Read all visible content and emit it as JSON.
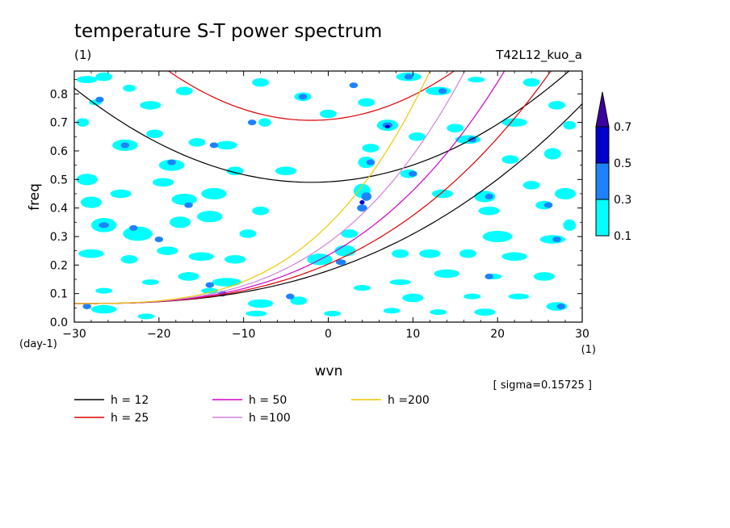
{
  "chart_data": {
    "type": "heatmap",
    "title": "temperature S-T power spectrum",
    "subtitle_left": "(1)",
    "subtitle_right": "T42L12_kuo_a",
    "xlabel": "wvn",
    "ylabel": "freq",
    "x_unit": "(1)",
    "y_unit": "(day-1)",
    "xlim": [
      -30,
      30
    ],
    "ylim": [
      0,
      0.88
    ],
    "x_ticks": [
      -30,
      -20,
      -10,
      0,
      10,
      20,
      30
    ],
    "y_ticks": [
      0.0,
      0.1,
      0.2,
      0.3,
      0.4,
      0.5,
      0.6,
      0.7,
      0.8
    ],
    "sigma_label": "[ sigma=0.15725 ]",
    "colorbar": {
      "levels": [
        0.1,
        0.3,
        0.5,
        0.7
      ],
      "colors": [
        "#00ffff",
        "#1e82ff",
        "#0000cd",
        "#3c00a0"
      ]
    },
    "dispersion_curves": [
      {
        "name": "h = 12",
        "h": 12,
        "color": "#000000"
      },
      {
        "name": "h = 25",
        "h": 25,
        "color": "#dc0000"
      },
      {
        "name": "h = 50",
        "h": 50,
        "color": "#d200c8"
      },
      {
        "name": "h =100",
        "h": 100,
        "color": "#d282dc"
      },
      {
        "name": "h =200",
        "h": 200,
        "color": "#f0c800"
      }
    ],
    "power_patches": [
      {
        "x": -28.5,
        "y": 0.85,
        "w": 2.5,
        "h": 0.025,
        "level": 1
      },
      {
        "x": -26.5,
        "y": 0.86,
        "w": 2.0,
        "h": 0.03,
        "level": 1
      },
      {
        "x": -23.5,
        "y": 0.82,
        "w": 1.5,
        "h": 0.025,
        "level": 1
      },
      {
        "x": -27.5,
        "y": 0.77,
        "w": 1.5,
        "h": 0.02,
        "level": 1
      },
      {
        "x": -21.0,
        "y": 0.76,
        "w": 2.5,
        "h": 0.03,
        "level": 1
      },
      {
        "x": -17.0,
        "y": 0.81,
        "w": 2.0,
        "h": 0.03,
        "level": 1
      },
      {
        "x": -8.0,
        "y": 0.84,
        "w": 2.0,
        "h": 0.03,
        "level": 1
      },
      {
        "x": -3.0,
        "y": 0.79,
        "w": 2.0,
        "h": 0.03,
        "level": 1
      },
      {
        "x": 0.0,
        "y": 0.73,
        "w": 2.0,
        "h": 0.03,
        "level": 1
      },
      {
        "x": 4.5,
        "y": 0.77,
        "w": 2.0,
        "h": 0.03,
        "level": 1
      },
      {
        "x": 9.5,
        "y": 0.86,
        "w": 3.0,
        "h": 0.03,
        "level": 1
      },
      {
        "x": 13.0,
        "y": 0.81,
        "w": 3.0,
        "h": 0.03,
        "level": 1
      },
      {
        "x": 17.5,
        "y": 0.85,
        "w": 2.0,
        "h": 0.02,
        "level": 1
      },
      {
        "x": 24.0,
        "y": 0.84,
        "w": 2.0,
        "h": 0.03,
        "level": 1
      },
      {
        "x": 27.0,
        "y": 0.76,
        "w": 2.0,
        "h": 0.03,
        "level": 1
      },
      {
        "x": 28.5,
        "y": 0.69,
        "w": 1.5,
        "h": 0.03,
        "level": 1
      },
      {
        "x": 22.0,
        "y": 0.7,
        "w": 3.0,
        "h": 0.03,
        "level": 1
      },
      {
        "x": 16.5,
        "y": 0.64,
        "w": 3.0,
        "h": 0.03,
        "level": 1
      },
      {
        "x": 10.5,
        "y": 0.65,
        "w": 2.0,
        "h": 0.03,
        "level": 1
      },
      {
        "x": -29.0,
        "y": 0.7,
        "w": 1.5,
        "h": 0.03,
        "level": 1
      },
      {
        "x": -24.0,
        "y": 0.62,
        "w": 3.0,
        "h": 0.04,
        "level": 1
      },
      {
        "x": -20.5,
        "y": 0.66,
        "w": 2.0,
        "h": 0.03,
        "level": 1
      },
      {
        "x": -18.5,
        "y": 0.55,
        "w": 3.0,
        "h": 0.04,
        "level": 1
      },
      {
        "x": -15.5,
        "y": 0.63,
        "w": 2.0,
        "h": 0.03,
        "level": 1
      },
      {
        "x": -12.0,
        "y": 0.62,
        "w": 2.5,
        "h": 0.03,
        "level": 1
      },
      {
        "x": -28.5,
        "y": 0.5,
        "w": 2.5,
        "h": 0.04,
        "level": 1
      },
      {
        "x": -24.5,
        "y": 0.45,
        "w": 2.5,
        "h": 0.03,
        "level": 1
      },
      {
        "x": -19.5,
        "y": 0.49,
        "w": 2.5,
        "h": 0.03,
        "level": 1
      },
      {
        "x": -17.0,
        "y": 0.43,
        "w": 3.0,
        "h": 0.04,
        "level": 1
      },
      {
        "x": -13.5,
        "y": 0.45,
        "w": 3.0,
        "h": 0.04,
        "level": 1
      },
      {
        "x": -5.0,
        "y": 0.53,
        "w": 2.5,
        "h": 0.03,
        "level": 1
      },
      {
        "x": -8.0,
        "y": 0.39,
        "w": 2.0,
        "h": 0.03,
        "level": 1
      },
      {
        "x": -28.0,
        "y": 0.42,
        "w": 2.5,
        "h": 0.04,
        "level": 1
      },
      {
        "x": -26.5,
        "y": 0.34,
        "w": 3.0,
        "h": 0.05,
        "level": 1
      },
      {
        "x": -22.5,
        "y": 0.31,
        "w": 3.5,
        "h": 0.05,
        "level": 1
      },
      {
        "x": -17.5,
        "y": 0.35,
        "w": 2.5,
        "h": 0.04,
        "level": 1
      },
      {
        "x": -14.0,
        "y": 0.37,
        "w": 3.0,
        "h": 0.04,
        "level": 1
      },
      {
        "x": -9.5,
        "y": 0.31,
        "w": 2.0,
        "h": 0.03,
        "level": 1
      },
      {
        "x": -28.0,
        "y": 0.24,
        "w": 3.0,
        "h": 0.03,
        "level": 1
      },
      {
        "x": -23.5,
        "y": 0.22,
        "w": 2.0,
        "h": 0.03,
        "level": 1
      },
      {
        "x": -19.0,
        "y": 0.25,
        "w": 2.5,
        "h": 0.03,
        "level": 1
      },
      {
        "x": -15.0,
        "y": 0.23,
        "w": 3.0,
        "h": 0.03,
        "level": 1
      },
      {
        "x": -11.0,
        "y": 0.22,
        "w": 2.5,
        "h": 0.03,
        "level": 1
      },
      {
        "x": -16.5,
        "y": 0.16,
        "w": 2.5,
        "h": 0.03,
        "level": 1
      },
      {
        "x": -21.0,
        "y": 0.14,
        "w": 2.0,
        "h": 0.02,
        "level": 1
      },
      {
        "x": -26.5,
        "y": 0.11,
        "w": 2.0,
        "h": 0.02,
        "level": 1
      },
      {
        "x": -12.0,
        "y": 0.14,
        "w": 3.5,
        "h": 0.03,
        "level": 1
      },
      {
        "x": -14.0,
        "y": 0.11,
        "w": 2.0,
        "h": 0.02,
        "level": 1
      },
      {
        "x": -8.0,
        "y": 0.065,
        "w": 3.0,
        "h": 0.03,
        "level": 1
      },
      {
        "x": -3.5,
        "y": 0.075,
        "w": 2.0,
        "h": 0.03,
        "level": 1
      },
      {
        "x": -8.5,
        "y": 0.03,
        "w": 2.5,
        "h": 0.02,
        "level": 1
      },
      {
        "x": -26.5,
        "y": 0.045,
        "w": 3.0,
        "h": 0.03,
        "level": 1
      },
      {
        "x": -21.5,
        "y": 0.02,
        "w": 2.0,
        "h": 0.02,
        "level": 1
      },
      {
        "x": 0.5,
        "y": 0.03,
        "w": 2.0,
        "h": 0.02,
        "level": 1
      },
      {
        "x": -1.0,
        "y": 0.22,
        "w": 3.0,
        "h": 0.04,
        "level": 1
      },
      {
        "x": 2.0,
        "y": 0.25,
        "w": 2.5,
        "h": 0.04,
        "level": 1
      },
      {
        "x": 2.5,
        "y": 0.31,
        "w": 2.0,
        "h": 0.03,
        "level": 1
      },
      {
        "x": 4.0,
        "y": 0.46,
        "w": 2.0,
        "h": 0.05,
        "level": 1
      },
      {
        "x": 4.5,
        "y": 0.56,
        "w": 2.0,
        "h": 0.04,
        "level": 1
      },
      {
        "x": 7.0,
        "y": 0.69,
        "w": 2.5,
        "h": 0.04,
        "level": 1
      },
      {
        "x": 5.0,
        "y": 0.61,
        "w": 2.0,
        "h": 0.03,
        "level": 1
      },
      {
        "x": 9.5,
        "y": 0.52,
        "w": 2.0,
        "h": 0.03,
        "level": 1
      },
      {
        "x": 13.5,
        "y": 0.45,
        "w": 2.5,
        "h": 0.03,
        "level": 1
      },
      {
        "x": 18.5,
        "y": 0.44,
        "w": 2.5,
        "h": 0.04,
        "level": 1
      },
      {
        "x": 24.0,
        "y": 0.48,
        "w": 2.0,
        "h": 0.03,
        "level": 1
      },
      {
        "x": 28.0,
        "y": 0.45,
        "w": 2.5,
        "h": 0.04,
        "level": 1
      },
      {
        "x": 19.0,
        "y": 0.39,
        "w": 2.5,
        "h": 0.03,
        "level": 1
      },
      {
        "x": 25.5,
        "y": 0.41,
        "w": 2.0,
        "h": 0.03,
        "level": 1
      },
      {
        "x": 28.5,
        "y": 0.34,
        "w": 1.5,
        "h": 0.04,
        "level": 1
      },
      {
        "x": 20.0,
        "y": 0.3,
        "w": 3.5,
        "h": 0.04,
        "level": 1
      },
      {
        "x": 26.5,
        "y": 0.29,
        "w": 3.0,
        "h": 0.03,
        "level": 1
      },
      {
        "x": 22.0,
        "y": 0.23,
        "w": 3.0,
        "h": 0.03,
        "level": 1
      },
      {
        "x": 16.5,
        "y": 0.24,
        "w": 2.0,
        "h": 0.03,
        "level": 1
      },
      {
        "x": 12.0,
        "y": 0.24,
        "w": 2.5,
        "h": 0.03,
        "level": 1
      },
      {
        "x": 8.5,
        "y": 0.24,
        "w": 2.0,
        "h": 0.03,
        "level": 1
      },
      {
        "x": 14.0,
        "y": 0.17,
        "w": 3.0,
        "h": 0.03,
        "level": 1
      },
      {
        "x": 19.5,
        "y": 0.16,
        "w": 2.0,
        "h": 0.02,
        "level": 1
      },
      {
        "x": 25.5,
        "y": 0.16,
        "w": 2.5,
        "h": 0.03,
        "level": 1
      },
      {
        "x": 8.5,
        "y": 0.14,
        "w": 2.5,
        "h": 0.02,
        "level": 1
      },
      {
        "x": 4.0,
        "y": 0.12,
        "w": 2.0,
        "h": 0.02,
        "level": 1
      },
      {
        "x": 10.0,
        "y": 0.085,
        "w": 2.5,
        "h": 0.03,
        "level": 1
      },
      {
        "x": 17.0,
        "y": 0.09,
        "w": 2.0,
        "h": 0.02,
        "level": 1
      },
      {
        "x": 22.5,
        "y": 0.09,
        "w": 2.5,
        "h": 0.02,
        "level": 1
      },
      {
        "x": 27.0,
        "y": 0.055,
        "w": 2.5,
        "h": 0.03,
        "level": 1
      },
      {
        "x": 18.5,
        "y": 0.035,
        "w": 2.5,
        "h": 0.025,
        "level": 1
      },
      {
        "x": 13.0,
        "y": 0.035,
        "w": 2.0,
        "h": 0.02,
        "level": 1
      },
      {
        "x": 7.5,
        "y": 0.04,
        "w": 2.0,
        "h": 0.02,
        "level": 1
      },
      {
        "x": 26.5,
        "y": 0.59,
        "w": 2.0,
        "h": 0.04,
        "level": 1
      },
      {
        "x": 21.5,
        "y": 0.57,
        "w": 2.0,
        "h": 0.03,
        "level": 1
      },
      {
        "x": 15.0,
        "y": 0.68,
        "w": 2.0,
        "h": 0.03,
        "level": 1
      },
      {
        "x": -7.5,
        "y": 0.7,
        "w": 1.5,
        "h": 0.03,
        "level": 1
      },
      {
        "x": -11.0,
        "y": 0.53,
        "w": 2.0,
        "h": 0.03,
        "level": 1
      },
      {
        "x": 4.5,
        "y": 0.44,
        "w": 1.2,
        "h": 0.03,
        "level": 2
      },
      {
        "x": 4.0,
        "y": 0.4,
        "w": 1.2,
        "h": 0.025,
        "level": 2
      },
      {
        "x": 7.0,
        "y": 0.69,
        "w": 1.2,
        "h": 0.02,
        "level": 2
      },
      {
        "x": 5.0,
        "y": 0.56,
        "w": 1.0,
        "h": 0.02,
        "level": 2
      },
      {
        "x": 3.0,
        "y": 0.83,
        "w": 1.0,
        "h": 0.02,
        "level": 2
      },
      {
        "x": 9.5,
        "y": 0.86,
        "w": 1.0,
        "h": 0.02,
        "level": 2
      },
      {
        "x": 13.5,
        "y": 0.81,
        "w": 1.0,
        "h": 0.02,
        "level": 2
      },
      {
        "x": 1.5,
        "y": 0.21,
        "w": 1.2,
        "h": 0.02,
        "level": 2
      },
      {
        "x": -26.5,
        "y": 0.34,
        "w": 1.2,
        "h": 0.02,
        "level": 2
      },
      {
        "x": -23.0,
        "y": 0.33,
        "w": 1.0,
        "h": 0.02,
        "level": 2
      },
      {
        "x": -20.0,
        "y": 0.29,
        "w": 1.0,
        "h": 0.02,
        "level": 2
      },
      {
        "x": -16.5,
        "y": 0.41,
        "w": 1.0,
        "h": 0.02,
        "level": 2
      },
      {
        "x": -18.5,
        "y": 0.56,
        "w": 1.0,
        "h": 0.02,
        "level": 2
      },
      {
        "x": -24.0,
        "y": 0.62,
        "w": 1.0,
        "h": 0.02,
        "level": 2
      },
      {
        "x": -13.5,
        "y": 0.62,
        "w": 1.0,
        "h": 0.02,
        "level": 2
      },
      {
        "x": -9.0,
        "y": 0.7,
        "w": 1.0,
        "h": 0.02,
        "level": 2
      },
      {
        "x": -27.0,
        "y": 0.78,
        "w": 1.0,
        "h": 0.02,
        "level": 2
      },
      {
        "x": -3.0,
        "y": 0.79,
        "w": 1.0,
        "h": 0.02,
        "level": 2
      },
      {
        "x": 10.0,
        "y": 0.52,
        "w": 1.0,
        "h": 0.02,
        "level": 2
      },
      {
        "x": 17.0,
        "y": 0.64,
        "w": 1.0,
        "h": 0.02,
        "level": 2
      },
      {
        "x": 19.0,
        "y": 0.44,
        "w": 1.0,
        "h": 0.02,
        "level": 2
      },
      {
        "x": 26.0,
        "y": 0.41,
        "w": 1.0,
        "h": 0.02,
        "level": 2
      },
      {
        "x": 27.0,
        "y": 0.29,
        "w": 1.0,
        "h": 0.02,
        "level": 2
      },
      {
        "x": 19.0,
        "y": 0.16,
        "w": 1.0,
        "h": 0.02,
        "level": 2
      },
      {
        "x": 27.5,
        "y": 0.055,
        "w": 1.0,
        "h": 0.02,
        "level": 2
      },
      {
        "x": -14.0,
        "y": 0.13,
        "w": 1.0,
        "h": 0.02,
        "level": 2
      },
      {
        "x": -12.5,
        "y": 0.1,
        "w": 1.0,
        "h": 0.02,
        "level": 2
      },
      {
        "x": -28.5,
        "y": 0.055,
        "w": 1.0,
        "h": 0.02,
        "level": 2
      },
      {
        "x": -4.5,
        "y": 0.09,
        "w": 1.0,
        "h": 0.02,
        "level": 2
      },
      {
        "x": 4.0,
        "y": 0.42,
        "w": 0.6,
        "h": 0.015,
        "level": 3
      },
      {
        "x": 7.0,
        "y": 0.685,
        "w": 0.6,
        "h": 0.012,
        "level": 3
      }
    ]
  }
}
